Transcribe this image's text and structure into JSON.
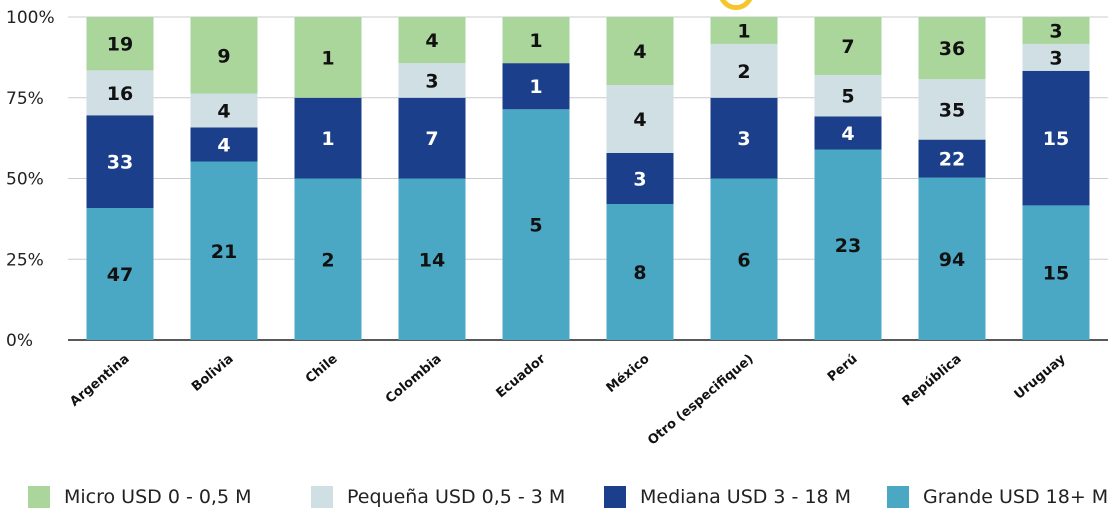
{
  "chart_data": {
    "type": "bar",
    "stacked": "percent",
    "categories": [
      "Argentina",
      "Bolivia",
      "Chile",
      "Colombia",
      "Ecuador",
      "México",
      "Otro (especifique)",
      "Perú",
      "República",
      "Uruguay"
    ],
    "series": [
      {
        "name": "Grande USD 18+ M",
        "color": "#4aa8c4",
        "label_color": "#111111",
        "values": [
          47,
          21,
          2,
          14,
          5,
          8,
          6,
          23,
          94,
          15
        ]
      },
      {
        "name": "Mediana USD 3 - 18 M",
        "color": "#1b3f8b",
        "label_color": "#ffffff",
        "values": [
          33,
          4,
          1,
          7,
          1,
          3,
          3,
          4,
          22,
          15
        ]
      },
      {
        "name": "Pequeña USD 0,5 - 3 M",
        "color": "#cfdfe3",
        "label_color": "#111111",
        "values": [
          16,
          4,
          0,
          3,
          0,
          4,
          2,
          5,
          35,
          3
        ]
      },
      {
        "name": "Micro USD 0 - 0,5 M",
        "color": "#aad69b",
        "label_color": "#111111",
        "values": [
          19,
          9,
          1,
          4,
          1,
          4,
          1,
          7,
          36,
          3
        ]
      }
    ],
    "ylim": [
      0,
      100
    ],
    "y_ticks": [
      "0%",
      "25%",
      "50%",
      "75%",
      "100%"
    ],
    "grid": true,
    "legend_position": "bottom",
    "legend": [
      {
        "label": "Micro USD 0 - 0,5 M",
        "color": "#aad69b"
      },
      {
        "label": "Pequeña USD 0,5 - 3 M",
        "color": "#cfdfe3"
      },
      {
        "label": "Mediana USD 3 - 18 M",
        "color": "#1b3f8b"
      },
      {
        "label": "Grande USD 18+ M",
        "color": "#4aa8c4"
      }
    ]
  }
}
